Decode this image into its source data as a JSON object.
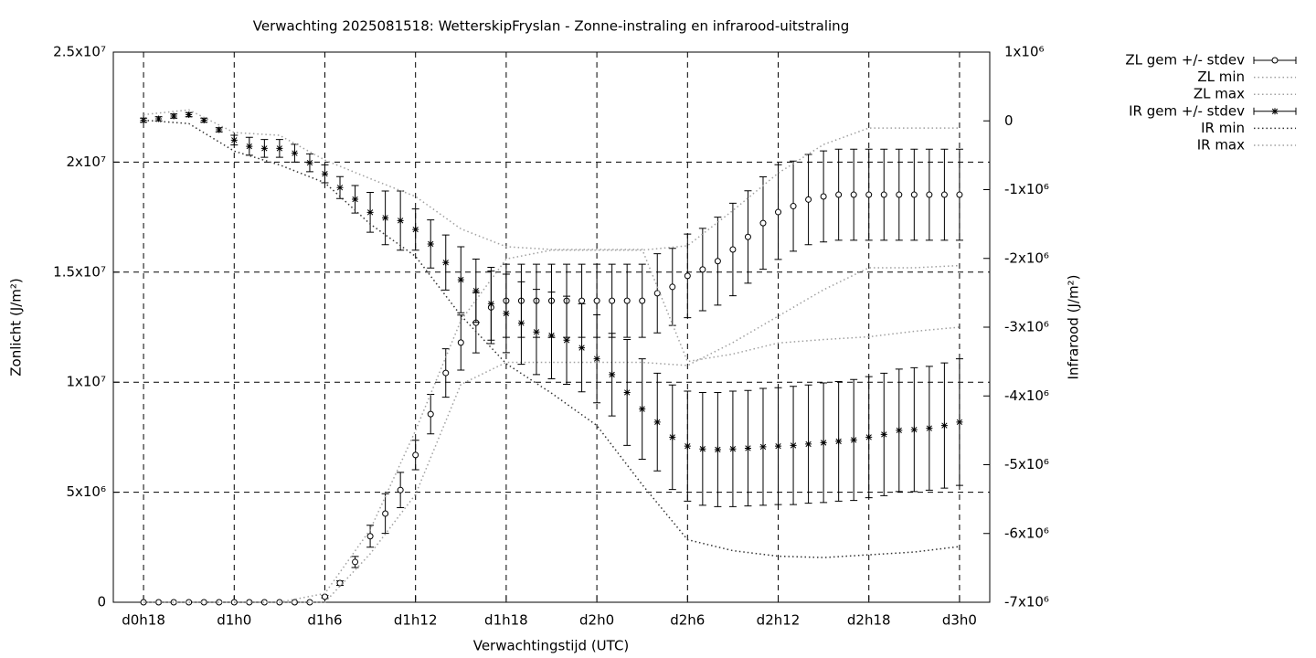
{
  "chart_data": {
    "type": "errorbar",
    "title": "Verwachting 2025081518: WetterskipFryslan - Zonne-instraling en infrarood-uitstraling",
    "xlabel": "Verwachtingstijd (UTC)",
    "ylabel": "Zonlicht (J/m²)",
    "y2label": "Infrarood (J/m²)",
    "grid": true,
    "xlim": [
      16,
      74
    ],
    "xticks": [
      {
        "value": 18,
        "label": "d0h18"
      },
      {
        "value": 24,
        "label": "d1h0"
      },
      {
        "value": 30,
        "label": "d1h6"
      },
      {
        "value": 36,
        "label": "d1h12"
      },
      {
        "value": 42,
        "label": "d1h18"
      },
      {
        "value": 48,
        "label": "d2h0"
      },
      {
        "value": 54,
        "label": "d2h6"
      },
      {
        "value": 60,
        "label": "d2h12"
      },
      {
        "value": 66,
        "label": "d2h18"
      },
      {
        "value": 72,
        "label": "d3h0"
      }
    ],
    "ylim": [
      0,
      25000000
    ],
    "yticks": [
      0,
      {
        "value": 5000000,
        "label": "5x10⁶"
      },
      {
        "value": 10000000,
        "label": "1x10⁷"
      },
      {
        "value": 15000000,
        "label": "1.5x10⁷"
      },
      {
        "value": 20000000,
        "label": "2x10⁷"
      },
      {
        "value": 25000000,
        "label": "2.5x10⁷"
      }
    ],
    "y2lim": [
      -7000000,
      1000000
    ],
    "y2ticks": [
      {
        "value": -7000000,
        "label": "-7x10⁶"
      },
      {
        "value": -6000000,
        "label": "-6x10⁶"
      },
      {
        "value": -5000000,
        "label": "-5x10⁶"
      },
      {
        "value": -4000000,
        "label": "-4x10⁶"
      },
      {
        "value": -3000000,
        "label": "-3x10⁶"
      },
      {
        "value": -2000000,
        "label": "-2x10⁶"
      },
      {
        "value": -1000000,
        "label": "-1x10⁶"
      },
      0,
      {
        "value": 1000000,
        "label": "1x10⁶"
      }
    ],
    "x": [
      18,
      19,
      20,
      21,
      22,
      23,
      24,
      25,
      26,
      27,
      28,
      29,
      30,
      31,
      32,
      33,
      34,
      35,
      36,
      37,
      38,
      39,
      40,
      41,
      42,
      43,
      44,
      45,
      46,
      47,
      48,
      49,
      50,
      51,
      52,
      53,
      54,
      55,
      56,
      57,
      58,
      59,
      60,
      61,
      62,
      63,
      64,
      65,
      66,
      67,
      68,
      69,
      70,
      71,
      72
    ],
    "series": [
      {
        "name": "ZL gem +/- stdev",
        "color": "#000000",
        "style": "errorbar",
        "marker": "circle",
        "values": [
          0,
          0,
          0,
          0,
          0,
          0,
          0,
          0,
          0,
          0,
          0,
          0,
          250000,
          870000,
          1830000,
          3000000,
          4030000,
          5100000,
          6690000,
          8550000,
          10420000,
          11800000,
          12700000,
          13400000,
          13700000,
          13700000,
          13700000,
          13700000,
          13700000,
          13700000,
          13700000,
          13700000,
          13700000,
          13700000,
          14040000,
          14330000,
          14830000,
          15120000,
          15500000,
          16030000,
          16600000,
          17230000,
          17730000,
          18000000,
          18300000,
          18440000,
          18520000,
          18520000,
          18520000,
          18520000,
          18520000,
          18520000,
          18520000,
          18520000,
          18520000
        ],
        "errors": [
          0,
          0,
          0,
          0,
          0,
          0,
          0,
          0,
          0,
          0,
          0,
          0,
          50000,
          100000,
          250000,
          500000,
          900000,
          800000,
          670000,
          900000,
          1100000,
          1250000,
          1370000,
          1650000,
          1660000,
          1660000,
          1660000,
          1660000,
          1660000,
          1660000,
          1660000,
          1660000,
          1660000,
          1660000,
          1800000,
          1750000,
          1900000,
          1870000,
          2000000,
          2100000,
          2100000,
          2100000,
          2150000,
          2050000,
          2050000,
          2070000,
          2070000,
          2070000,
          2070000,
          2070000,
          2070000,
          2070000,
          2070000,
          2070000,
          2070000
        ]
      },
      {
        "name": "ZL min",
        "color": "#a0a0a0",
        "style": "dotted",
        "x": [
          18,
          21,
          24,
          27,
          30,
          33,
          36,
          39,
          42,
          45,
          48,
          51,
          54,
          57,
          60,
          63,
          66,
          69,
          72
        ],
        "values": [
          0,
          0,
          0,
          0,
          0,
          2200000,
          4900000,
          9900000,
          10900000,
          10900000,
          10900000,
          10900000,
          10760000,
          11800000,
          13000000,
          14200000,
          15200000,
          15200000,
          15300000
        ]
      },
      {
        "name": "ZL max",
        "color": "#a0a0a0",
        "style": "dotted",
        "x": [
          18,
          21,
          24,
          27,
          30,
          33,
          36,
          39,
          42,
          45,
          48,
          51,
          54,
          57,
          60,
          63,
          66,
          69,
          72
        ],
        "values": [
          0,
          0,
          0,
          0,
          400000,
          3300000,
          7800000,
          12800000,
          15600000,
          16000000,
          16000000,
          16000000,
          16200000,
          17800000,
          19500000,
          20800000,
          21550000,
          21550000,
          21550000
        ]
      },
      {
        "name": "IR gem +/- stdev",
        "color": "#000000",
        "style": "errorbar",
        "marker": "star",
        "axis": "y2",
        "values": [
          10000,
          30000,
          70000,
          90000,
          10000,
          -130000,
          -280000,
          -370000,
          -400000,
          -400000,
          -470000,
          -610000,
          -770000,
          -970000,
          -1140000,
          -1330000,
          -1410000,
          -1450000,
          -1580000,
          -1790000,
          -2060000,
          -2310000,
          -2470000,
          -2660000,
          -2800000,
          -2940000,
          -3070000,
          -3120000,
          -3190000,
          -3300000,
          -3460000,
          -3690000,
          -3950000,
          -4190000,
          -4380000,
          -4600000,
          -4730000,
          -4770000,
          -4780000,
          -4770000,
          -4760000,
          -4740000,
          -4730000,
          -4720000,
          -4700000,
          -4680000,
          -4660000,
          -4640000,
          -4600000,
          -4560000,
          -4500000,
          -4490000,
          -4470000,
          -4430000,
          -4380000
        ],
        "errors": [
          30000,
          30000,
          30000,
          30000,
          30000,
          30000,
          70000,
          130000,
          130000,
          130000,
          130000,
          130000,
          130000,
          160000,
          200000,
          290000,
          390000,
          430000,
          300000,
          350000,
          400000,
          480000,
          460000,
          530000,
          570000,
          600000,
          620000,
          630000,
          640000,
          640000,
          640000,
          600000,
          770000,
          730000,
          710000,
          760000,
          800000,
          820000,
          830000,
          840000,
          840000,
          850000,
          850000,
          860000,
          860000,
          870000,
          870000,
          880000,
          880000,
          890000,
          890000,
          900000,
          900000,
          910000,
          920000
        ]
      },
      {
        "name": "IR min",
        "color": "#333333",
        "style": "dotted",
        "axis": "y2",
        "x": [
          18,
          21,
          24,
          27,
          30,
          33,
          36,
          39,
          42,
          45,
          48,
          51,
          54,
          57,
          60,
          63,
          66,
          69,
          72
        ],
        "values": [
          10000,
          -40000,
          -440000,
          -640000,
          -900000,
          -1500000,
          -1970000,
          -2830000,
          -3530000,
          -3960000,
          -4430000,
          -5290000,
          -6090000,
          -6250000,
          -6330000,
          -6350000,
          -6310000,
          -6270000,
          -6190000
        ]
      },
      {
        "name": "IR max",
        "color": "#a0a0a0",
        "style": "dotted",
        "axis": "y2",
        "x": [
          18,
          21,
          24,
          27,
          30,
          33,
          36,
          39,
          42,
          45,
          48,
          51,
          54,
          57,
          60,
          63,
          66,
          69,
          72
        ],
        "values": [
          90000,
          160000,
          -170000,
          -210000,
          -570000,
          -840000,
          -1100000,
          -1570000,
          -1830000,
          -1870000,
          -1870000,
          -1870000,
          -3500000,
          -3390000,
          -3230000,
          -3180000,
          -3140000,
          -3060000,
          -3000000
        ]
      }
    ]
  }
}
